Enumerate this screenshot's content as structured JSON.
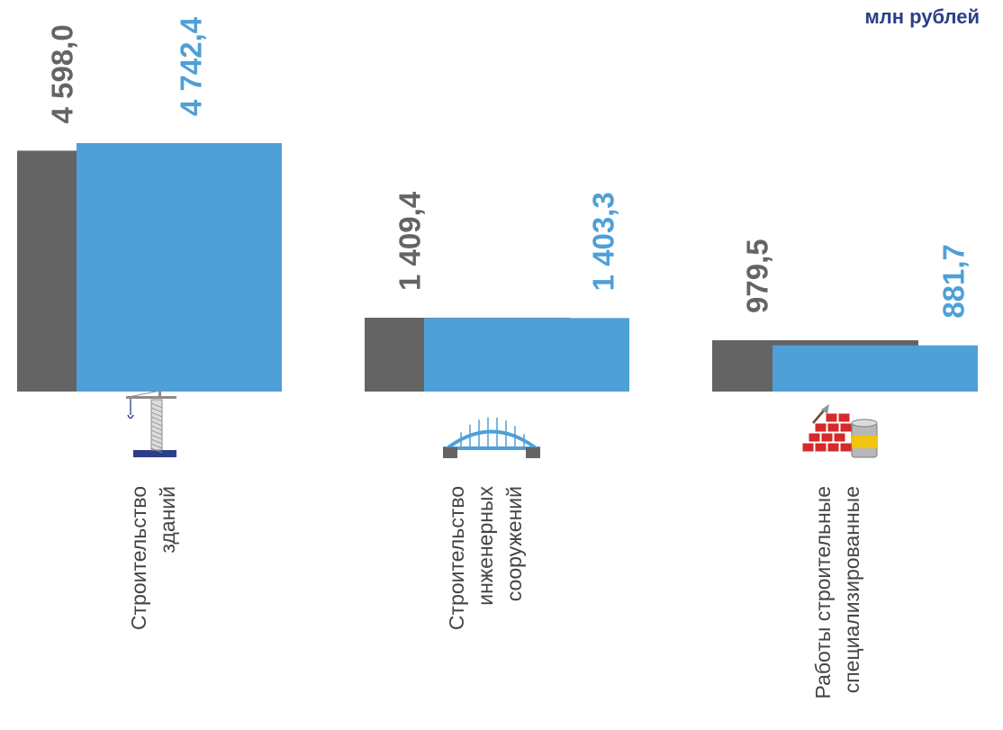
{
  "unit_label": "млн рублей",
  "colors": {
    "previous": "#646464",
    "current": "#4f9fd8",
    "unit": "#2c3e87"
  },
  "chart_data": {
    "type": "bar",
    "categories": [
      "Строительство зданий",
      "Строительство инженерных сооружений",
      "Работы строительные специализированные"
    ],
    "category_lines": [
      [
        "Строительство",
        "зданий"
      ],
      [
        "Строительство",
        "инженерных",
        "сооружений"
      ],
      [
        "Работы строительные",
        "специализированные"
      ]
    ],
    "category_icons": [
      "tower-crane-icon",
      "bridge-icon",
      "bricks-and-paint-icon"
    ],
    "series": [
      {
        "values": [
          4598.0,
          1409.4,
          979.5
        ]
      },
      {
        "values": [
          4742.4,
          1403.3,
          881.7
        ]
      }
    ],
    "value_labels": [
      [
        "4 598,0",
        "1 409,4",
        "979,5"
      ],
      [
        "4 742,4",
        "1 403,3",
        "881,7"
      ]
    ],
    "xlabel": "",
    "ylabel": "",
    "grid": false,
    "legend": "none"
  }
}
